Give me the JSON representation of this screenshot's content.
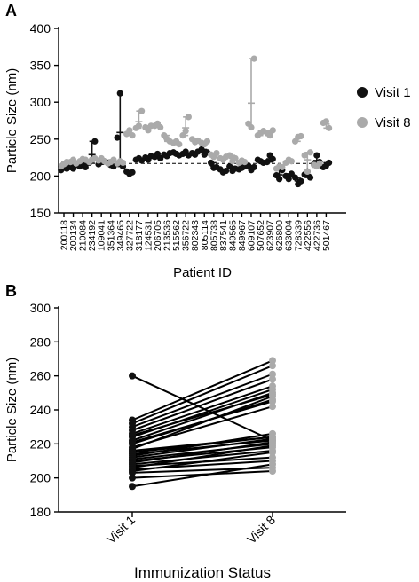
{
  "panels": {
    "a_label": "A",
    "b_label": "B"
  },
  "legend": {
    "visit1": {
      "label": "Visit 1",
      "color": "#111111"
    },
    "visit8": {
      "label": "Visit 8",
      "color": "#aaaaaa"
    }
  },
  "chart_data": [
    {
      "type": "scatter",
      "panel": "A",
      "xlabel": "Patient ID",
      "ylabel": "Particle Size (nm)",
      "ylim": [
        150,
        400
      ],
      "yticks": [
        150,
        200,
        250,
        300,
        350,
        400
      ],
      "reference_line": 217,
      "categories": [
        "200118",
        "200134",
        "210084",
        "234192",
        "109041",
        "351364",
        "349465",
        "327722",
        "318177",
        "124531",
        "206705",
        "213536",
        "515562",
        "356722",
        "802343",
        "805114",
        "805738",
        "837541",
        "849565",
        "849967",
        "609107",
        "507652",
        "623907",
        "626800",
        "633004",
        "728339",
        "422556",
        "422736",
        "501467"
      ],
      "series": [
        {
          "name": "Visit 1",
          "color": "#111111",
          "points": [
            [
              208,
              212,
              210
            ],
            [
              212,
              210,
              215
            ],
            [
              213,
              216,
              212
            ],
            [
              218,
              222,
              247
            ],
            [
              216,
              219,
              220
            ],
            [
              218,
              215,
              213
            ],
            [
              252,
              312,
              213
            ],
            [
              206,
              203,
              205
            ],
            [
              222,
              224,
              221
            ],
            [
              225,
              222,
              227
            ],
            [
              226,
              230,
              224
            ],
            [
              229,
              227,
              231
            ],
            [
              232,
              230,
              228
            ],
            [
              230,
              233,
              228
            ],
            [
              231,
              229,
              233
            ],
            [
              236,
              229,
              232
            ],
            [
              218,
              211,
              212
            ],
            [
              209,
              205,
              207
            ],
            [
              213,
              207,
              210
            ],
            [
              209,
              211,
              213
            ],
            [
              214,
              208,
              212
            ],
            [
              222,
              220,
              218
            ],
            [
              219,
              228,
              223
            ],
            [
              201,
              196,
              208
            ],
            [
              200,
              196,
              203
            ],
            [
              198,
              189,
              193
            ],
            [
              202,
              206,
              198
            ],
            [
              216,
              228,
              219
            ],
            [
              212,
              214,
              218
            ]
          ]
        },
        {
          "name": "Visit 8",
          "color": "#aaaaaa",
          "points": [
            [
              213,
              216,
              219
            ],
            [
              219,
              222,
              217
            ],
            [
              220,
              223,
              222
            ],
            [
              219,
              222,
              224
            ],
            [
              221,
              224,
              220
            ],
            [
              217,
              219,
              222
            ],
            [
              217,
              220,
              218
            ],
            [
              257,
              262,
              255
            ],
            [
              265,
              268,
              288
            ],
            [
              266,
              262,
              268
            ],
            [
              268,
              271,
              266
            ],
            [
              255,
              250,
              247
            ],
            [
              245,
              247,
              243
            ],
            [
              255,
              261,
              280
            ],
            [
              250,
              246,
              248
            ],
            [
              245,
              243,
              247
            ],
            [
              229,
              226,
              231
            ],
            [
              224,
              222,
              226
            ],
            [
              228,
              220,
              224
            ],
            [
              218,
              221,
              219
            ],
            [
              271,
              266,
              359
            ],
            [
              255,
              258,
              261
            ],
            [
              258,
              255,
              262
            ],
            [
              210,
              213,
              212
            ],
            [
              218,
              222,
              220
            ],
            [
              247,
              253,
              254
            ],
            [
              228,
              206,
              232
            ],
            [
              215,
              213,
              217
            ],
            [
              272,
              274,
              265
            ]
          ]
        }
      ]
    },
    {
      "type": "line",
      "panel": "B",
      "xlabel": "Immunization Status",
      "ylabel": "Particle Size (nm)",
      "categories": [
        "Visit 1",
        "Visit 8"
      ],
      "ylim": [
        180,
        300
      ],
      "yticks": [
        180,
        200,
        220,
        240,
        260,
        280,
        300
      ],
      "pairs": [
        [
          260,
          222
        ],
        [
          234,
          269
        ],
        [
          232,
          266
        ],
        [
          230,
          261
        ],
        [
          228,
          258
        ],
        [
          226,
          254
        ],
        [
          225,
          249
        ],
        [
          224,
          252
        ],
        [
          222,
          250
        ],
        [
          221,
          245
        ],
        [
          220,
          246
        ],
        [
          218,
          242
        ],
        [
          217,
          248
        ],
        [
          216,
          224
        ],
        [
          215,
          224
        ],
        [
          214,
          222
        ],
        [
          213,
          226
        ],
        [
          212,
          223
        ],
        [
          211,
          220
        ],
        [
          210,
          218
        ],
        [
          209,
          221
        ],
        [
          208,
          216
        ],
        [
          207,
          212
        ],
        [
          206,
          219
        ],
        [
          205,
          210
        ],
        [
          204,
          215
        ],
        [
          203,
          206
        ],
        [
          200,
          204
        ],
        [
          195,
          208
        ]
      ]
    }
  ]
}
